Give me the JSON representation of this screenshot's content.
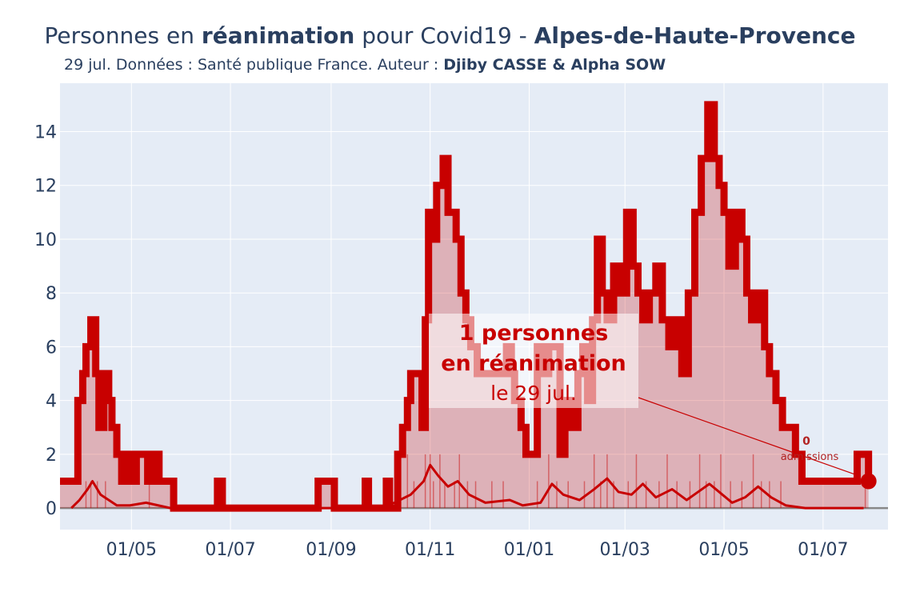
{
  "header": {
    "title_prefix": "Personnes en ",
    "title_bold": "réanimation",
    "title_mid": " pour Covid19 - ",
    "title_region": "Alpes-de-Haute-Provence",
    "subtitle_prefix": "29 jul. Données : Santé publique France. Auteur : ",
    "subtitle_authors": "Djiby CASSE & Alpha SOW"
  },
  "annotation": {
    "line1": "1 personnes",
    "line2": "en réanimation",
    "line3": "le 29 jul.",
    "admissions_value": "0",
    "admissions_label": "admissions"
  },
  "colors": {
    "main_line": "#c80000",
    "fill": "rgba(200,0,0,0.25)",
    "plot_bg": "#e5ecf6",
    "grid": "#ffffff",
    "axis_text": "#2a3f5f"
  },
  "chart_data": {
    "type": "area",
    "xlim": [
      "2020-03-18",
      "2021-08-10"
    ],
    "ylim": [
      -0.8,
      15.8
    ],
    "xticks": [
      {
        "date": "2020-05-01",
        "label": "01/05"
      },
      {
        "date": "2020-07-01",
        "label": "01/07"
      },
      {
        "date": "2020-09-01",
        "label": "01/09"
      },
      {
        "date": "2020-11-01",
        "label": "01/11"
      },
      {
        "date": "2021-01-01",
        "label": "01/01"
      },
      {
        "date": "2021-03-01",
        "label": "01/03"
      },
      {
        "date": "2021-05-01",
        "label": "01/05"
      },
      {
        "date": "2021-07-01",
        "label": "01/07"
      }
    ],
    "yticks": [
      0,
      2,
      4,
      6,
      8,
      10,
      12,
      14
    ],
    "series": [
      {
        "key": "rea",
        "points": [
          [
            "2020-03-18",
            1
          ],
          [
            "2020-03-28",
            1
          ],
          [
            "2020-03-29",
            4
          ],
          [
            "2020-04-01",
            5
          ],
          [
            "2020-04-03",
            6
          ],
          [
            "2020-04-06",
            7
          ],
          [
            "2020-04-09",
            5
          ],
          [
            "2020-04-11",
            3
          ],
          [
            "2020-04-14",
            5
          ],
          [
            "2020-04-17",
            4
          ],
          [
            "2020-04-19",
            3
          ],
          [
            "2020-04-22",
            2
          ],
          [
            "2020-04-25",
            1
          ],
          [
            "2020-04-28",
            2
          ],
          [
            "2020-05-01",
            1
          ],
          [
            "2020-05-04",
            2
          ],
          [
            "2020-05-08",
            2
          ],
          [
            "2020-05-11",
            1
          ],
          [
            "2020-05-14",
            2
          ],
          [
            "2020-05-18",
            1
          ],
          [
            "2020-05-26",
            1
          ],
          [
            "2020-05-27",
            0
          ],
          [
            "2020-06-21",
            0
          ],
          [
            "2020-06-23",
            1
          ],
          [
            "2020-06-26",
            0
          ],
          [
            "2020-08-22",
            0
          ],
          [
            "2020-08-24",
            1
          ],
          [
            "2020-09-02",
            1
          ],
          [
            "2020-09-03",
            0
          ],
          [
            "2020-09-20",
            0
          ],
          [
            "2020-09-22",
            1
          ],
          [
            "2020-09-24",
            0
          ],
          [
            "2020-10-03",
            0
          ],
          [
            "2020-10-05",
            1
          ],
          [
            "2020-10-07",
            0
          ],
          [
            "2020-10-10",
            0
          ],
          [
            "2020-10-12",
            2
          ],
          [
            "2020-10-15",
            3
          ],
          [
            "2020-10-18",
            4
          ],
          [
            "2020-10-20",
            5
          ],
          [
            "2020-10-25",
            5
          ],
          [
            "2020-10-27",
            3
          ],
          [
            "2020-10-29",
            7
          ],
          [
            "2020-10-31",
            11
          ],
          [
            "2020-11-02",
            10
          ],
          [
            "2020-11-05",
            12
          ],
          [
            "2020-11-09",
            13
          ],
          [
            "2020-11-12",
            11
          ],
          [
            "2020-11-17",
            10
          ],
          [
            "2020-11-20",
            8
          ],
          [
            "2020-11-23",
            7
          ],
          [
            "2020-11-26",
            6
          ],
          [
            "2020-11-30",
            5
          ],
          [
            "2020-12-15",
            5
          ],
          [
            "2020-12-18",
            6
          ],
          [
            "2020-12-21",
            5
          ],
          [
            "2020-12-23",
            4
          ],
          [
            "2020-12-27",
            3
          ],
          [
            "2020-12-30",
            2
          ],
          [
            "2021-01-03",
            2
          ],
          [
            "2021-01-06",
            6
          ],
          [
            "2021-01-10",
            5
          ],
          [
            "2021-01-13",
            6
          ],
          [
            "2021-01-16",
            6
          ],
          [
            "2021-01-20",
            2
          ],
          [
            "2021-01-23",
            4
          ],
          [
            "2021-01-27",
            3
          ],
          [
            "2021-01-31",
            5
          ],
          [
            "2021-02-03",
            6
          ],
          [
            "2021-02-06",
            4
          ],
          [
            "2021-02-09",
            7
          ],
          [
            "2021-02-12",
            10
          ],
          [
            "2021-02-15",
            8
          ],
          [
            "2021-02-18",
            7
          ],
          [
            "2021-02-22",
            9
          ],
          [
            "2021-02-26",
            8
          ],
          [
            "2021-03-02",
            11
          ],
          [
            "2021-03-06",
            9
          ],
          [
            "2021-03-09",
            8
          ],
          [
            "2021-03-12",
            7
          ],
          [
            "2021-03-16",
            8
          ],
          [
            "2021-03-20",
            9
          ],
          [
            "2021-03-24",
            7
          ],
          [
            "2021-03-28",
            6
          ],
          [
            "2021-04-01",
            7
          ],
          [
            "2021-04-05",
            5
          ],
          [
            "2021-04-09",
            8
          ],
          [
            "2021-04-13",
            11
          ],
          [
            "2021-04-17",
            13
          ],
          [
            "2021-04-21",
            15
          ],
          [
            "2021-04-25",
            13
          ],
          [
            "2021-04-28",
            12
          ],
          [
            "2021-05-01",
            11
          ],
          [
            "2021-05-04",
            9
          ],
          [
            "2021-05-08",
            11
          ],
          [
            "2021-05-12",
            10
          ],
          [
            "2021-05-15",
            8
          ],
          [
            "2021-05-18",
            7
          ],
          [
            "2021-05-22",
            8
          ],
          [
            "2021-05-26",
            6
          ],
          [
            "2021-05-29",
            5
          ],
          [
            "2021-06-02",
            4
          ],
          [
            "2021-06-06",
            3
          ],
          [
            "2021-06-10",
            3
          ],
          [
            "2021-06-14",
            2
          ],
          [
            "2021-06-18",
            1
          ],
          [
            "2021-07-19",
            1
          ],
          [
            "2021-07-22",
            2
          ],
          [
            "2021-07-26",
            2
          ],
          [
            "2021-07-29",
            1
          ]
        ]
      },
      {
        "key": "admissions_smooth",
        "points": [
          [
            "2020-03-25",
            0
          ],
          [
            "2020-03-30",
            0.3
          ],
          [
            "2020-04-04",
            0.7
          ],
          [
            "2020-04-07",
            1.0
          ],
          [
            "2020-04-12",
            0.5
          ],
          [
            "2020-04-17",
            0.3
          ],
          [
            "2020-04-22",
            0.1
          ],
          [
            "2020-04-30",
            0.1
          ],
          [
            "2020-05-10",
            0.2
          ],
          [
            "2020-05-25",
            0
          ],
          [
            "2020-10-01",
            0
          ],
          [
            "2020-10-10",
            0.2
          ],
          [
            "2020-10-20",
            0.5
          ],
          [
            "2020-10-28",
            1.0
          ],
          [
            "2020-11-01",
            1.6
          ],
          [
            "2020-11-06",
            1.2
          ],
          [
            "2020-11-12",
            0.8
          ],
          [
            "2020-11-18",
            1.0
          ],
          [
            "2020-11-25",
            0.5
          ],
          [
            "2020-12-05",
            0.2
          ],
          [
            "2020-12-20",
            0.3
          ],
          [
            "2020-12-28",
            0.1
          ],
          [
            "2021-01-08",
            0.2
          ],
          [
            "2021-01-15",
            0.9
          ],
          [
            "2021-01-22",
            0.5
          ],
          [
            "2021-02-01",
            0.3
          ],
          [
            "2021-02-10",
            0.7
          ],
          [
            "2021-02-18",
            1.1
          ],
          [
            "2021-02-25",
            0.6
          ],
          [
            "2021-03-05",
            0.5
          ],
          [
            "2021-03-12",
            0.9
          ],
          [
            "2021-03-20",
            0.4
          ],
          [
            "2021-03-30",
            0.7
          ],
          [
            "2021-04-08",
            0.3
          ],
          [
            "2021-04-15",
            0.6
          ],
          [
            "2021-04-22",
            0.9
          ],
          [
            "2021-04-30",
            0.5
          ],
          [
            "2021-05-06",
            0.2
          ],
          [
            "2021-05-14",
            0.4
          ],
          [
            "2021-05-22",
            0.8
          ],
          [
            "2021-05-30",
            0.4
          ],
          [
            "2021-06-08",
            0.1
          ],
          [
            "2021-06-20",
            0
          ],
          [
            "2021-07-26",
            0
          ]
        ]
      },
      {
        "key": "admissions_daily",
        "points": [
          [
            "2020-04-03",
            1
          ],
          [
            "2020-04-06",
            1
          ],
          [
            "2020-04-10",
            1
          ],
          [
            "2020-04-15",
            1
          ],
          [
            "2020-05-12",
            1
          ],
          [
            "2020-10-12",
            1
          ],
          [
            "2020-10-18",
            2
          ],
          [
            "2020-10-22",
            1
          ],
          [
            "2020-10-29",
            2
          ],
          [
            "2020-11-01",
            2
          ],
          [
            "2020-11-03",
            1
          ],
          [
            "2020-11-07",
            2
          ],
          [
            "2020-11-10",
            1
          ],
          [
            "2020-11-16",
            1
          ],
          [
            "2020-11-19",
            2
          ],
          [
            "2020-11-24",
            1
          ],
          [
            "2020-11-29",
            1
          ],
          [
            "2020-12-09",
            1
          ],
          [
            "2020-12-16",
            1
          ],
          [
            "2021-01-06",
            1
          ],
          [
            "2021-01-13",
            2
          ],
          [
            "2021-01-18",
            1
          ],
          [
            "2021-01-25",
            1
          ],
          [
            "2021-02-04",
            1
          ],
          [
            "2021-02-10",
            2
          ],
          [
            "2021-02-14",
            1
          ],
          [
            "2021-02-18",
            2
          ],
          [
            "2021-02-22",
            1
          ],
          [
            "2021-03-03",
            1
          ],
          [
            "2021-03-08",
            2
          ],
          [
            "2021-03-14",
            1
          ],
          [
            "2021-03-22",
            1
          ],
          [
            "2021-03-27",
            2
          ],
          [
            "2021-04-02",
            1
          ],
          [
            "2021-04-10",
            1
          ],
          [
            "2021-04-16",
            2
          ],
          [
            "2021-04-20",
            1
          ],
          [
            "2021-04-25",
            1
          ],
          [
            "2021-04-29",
            2
          ],
          [
            "2021-05-05",
            1
          ],
          [
            "2021-05-12",
            1
          ],
          [
            "2021-05-19",
            2
          ],
          [
            "2021-05-24",
            1
          ],
          [
            "2021-05-29",
            1
          ],
          [
            "2021-06-05",
            1
          ],
          [
            "2021-07-27",
            1
          ]
        ]
      }
    ],
    "last_point": {
      "date": "2021-07-29",
      "value": 1
    }
  }
}
